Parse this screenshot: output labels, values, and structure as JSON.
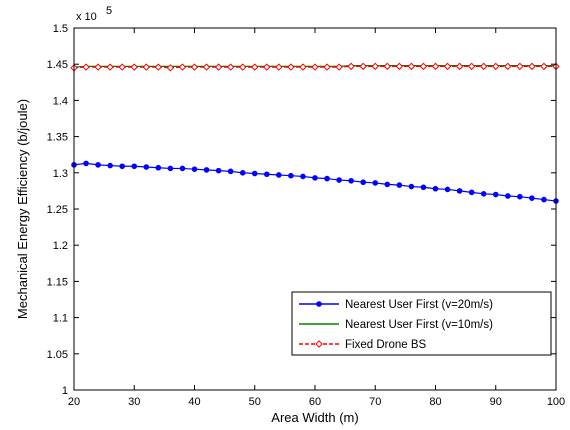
{
  "chart_data": {
    "type": "line",
    "title": "",
    "xlabel": "Area Width (m)",
    "ylabel": "Mechanical  Energy Efficiency (b/joule)",
    "multiplier_label": "x 10",
    "multiplier_exponent": "5",
    "xlim": [
      20,
      100
    ],
    "ylim": [
      1.0,
      1.5
    ],
    "xticks": [
      20,
      30,
      40,
      50,
      60,
      70,
      80,
      90,
      100
    ],
    "yticks": [
      1,
      1.05,
      1.1,
      1.15,
      1.2,
      1.25,
      1.3,
      1.35,
      1.4,
      1.45,
      1.5
    ],
    "xtick_labels": [
      "20",
      "30",
      "40",
      "50",
      "60",
      "70",
      "80",
      "90",
      "100"
    ],
    "ytick_labels": [
      "1",
      "1.05",
      "1.1",
      "1.15",
      "1.2",
      "1.25",
      "1.3",
      "1.35",
      "1.4",
      "1.45",
      "1.5"
    ],
    "grid": false,
    "legend_position": "lower-right",
    "x": [
      20,
      22,
      24,
      26,
      28,
      30,
      32,
      34,
      36,
      38,
      40,
      42,
      44,
      46,
      48,
      50,
      52,
      54,
      56,
      58,
      60,
      62,
      64,
      66,
      68,
      70,
      72,
      74,
      76,
      78,
      80,
      82,
      84,
      86,
      88,
      90,
      92,
      94,
      96,
      98,
      100
    ],
    "series": [
      {
        "name": "Nearest User First (v=20m/s)",
        "color": "#0000ff",
        "marker": "dot",
        "values": [
          1.311,
          1.313,
          1.311,
          1.31,
          1.309,
          1.309,
          1.308,
          1.307,
          1.306,
          1.306,
          1.305,
          1.304,
          1.303,
          1.302,
          1.3,
          1.299,
          1.298,
          1.297,
          1.296,
          1.295,
          1.293,
          1.292,
          1.29,
          1.289,
          1.287,
          1.286,
          1.284,
          1.283,
          1.281,
          1.28,
          1.278,
          1.277,
          1.275,
          1.273,
          1.271,
          1.27,
          1.268,
          1.267,
          1.265,
          1.263,
          1.261
        ]
      },
      {
        "name": "Nearest User First (v=10m/s)",
        "color": "#008000",
        "marker": "none",
        "values": [
          1.446,
          1.447,
          1.447,
          1.447,
          1.447,
          1.447,
          1.447,
          1.447,
          1.447,
          1.447,
          1.447,
          1.447,
          1.447,
          1.447,
          1.447,
          1.447,
          1.447,
          1.447,
          1.447,
          1.447,
          1.447,
          1.447,
          1.447,
          1.448,
          1.448,
          1.448,
          1.448,
          1.448,
          1.448,
          1.448,
          1.448,
          1.448,
          1.448,
          1.448,
          1.448,
          1.448,
          1.448,
          1.448,
          1.448,
          1.448,
          1.448
        ]
      },
      {
        "name": "Fixed Drone BS",
        "color": "#ff0000",
        "marker": "diamond",
        "dashed": true,
        "values": [
          1.445,
          1.446,
          1.446,
          1.446,
          1.446,
          1.446,
          1.446,
          1.446,
          1.445,
          1.446,
          1.446,
          1.446,
          1.446,
          1.446,
          1.446,
          1.446,
          1.446,
          1.446,
          1.446,
          1.446,
          1.446,
          1.446,
          1.446,
          1.447,
          1.447,
          1.447,
          1.447,
          1.447,
          1.447,
          1.447,
          1.447,
          1.447,
          1.447,
          1.447,
          1.447,
          1.447,
          1.447,
          1.447,
          1.447,
          1.447,
          1.447
        ]
      }
    ]
  }
}
